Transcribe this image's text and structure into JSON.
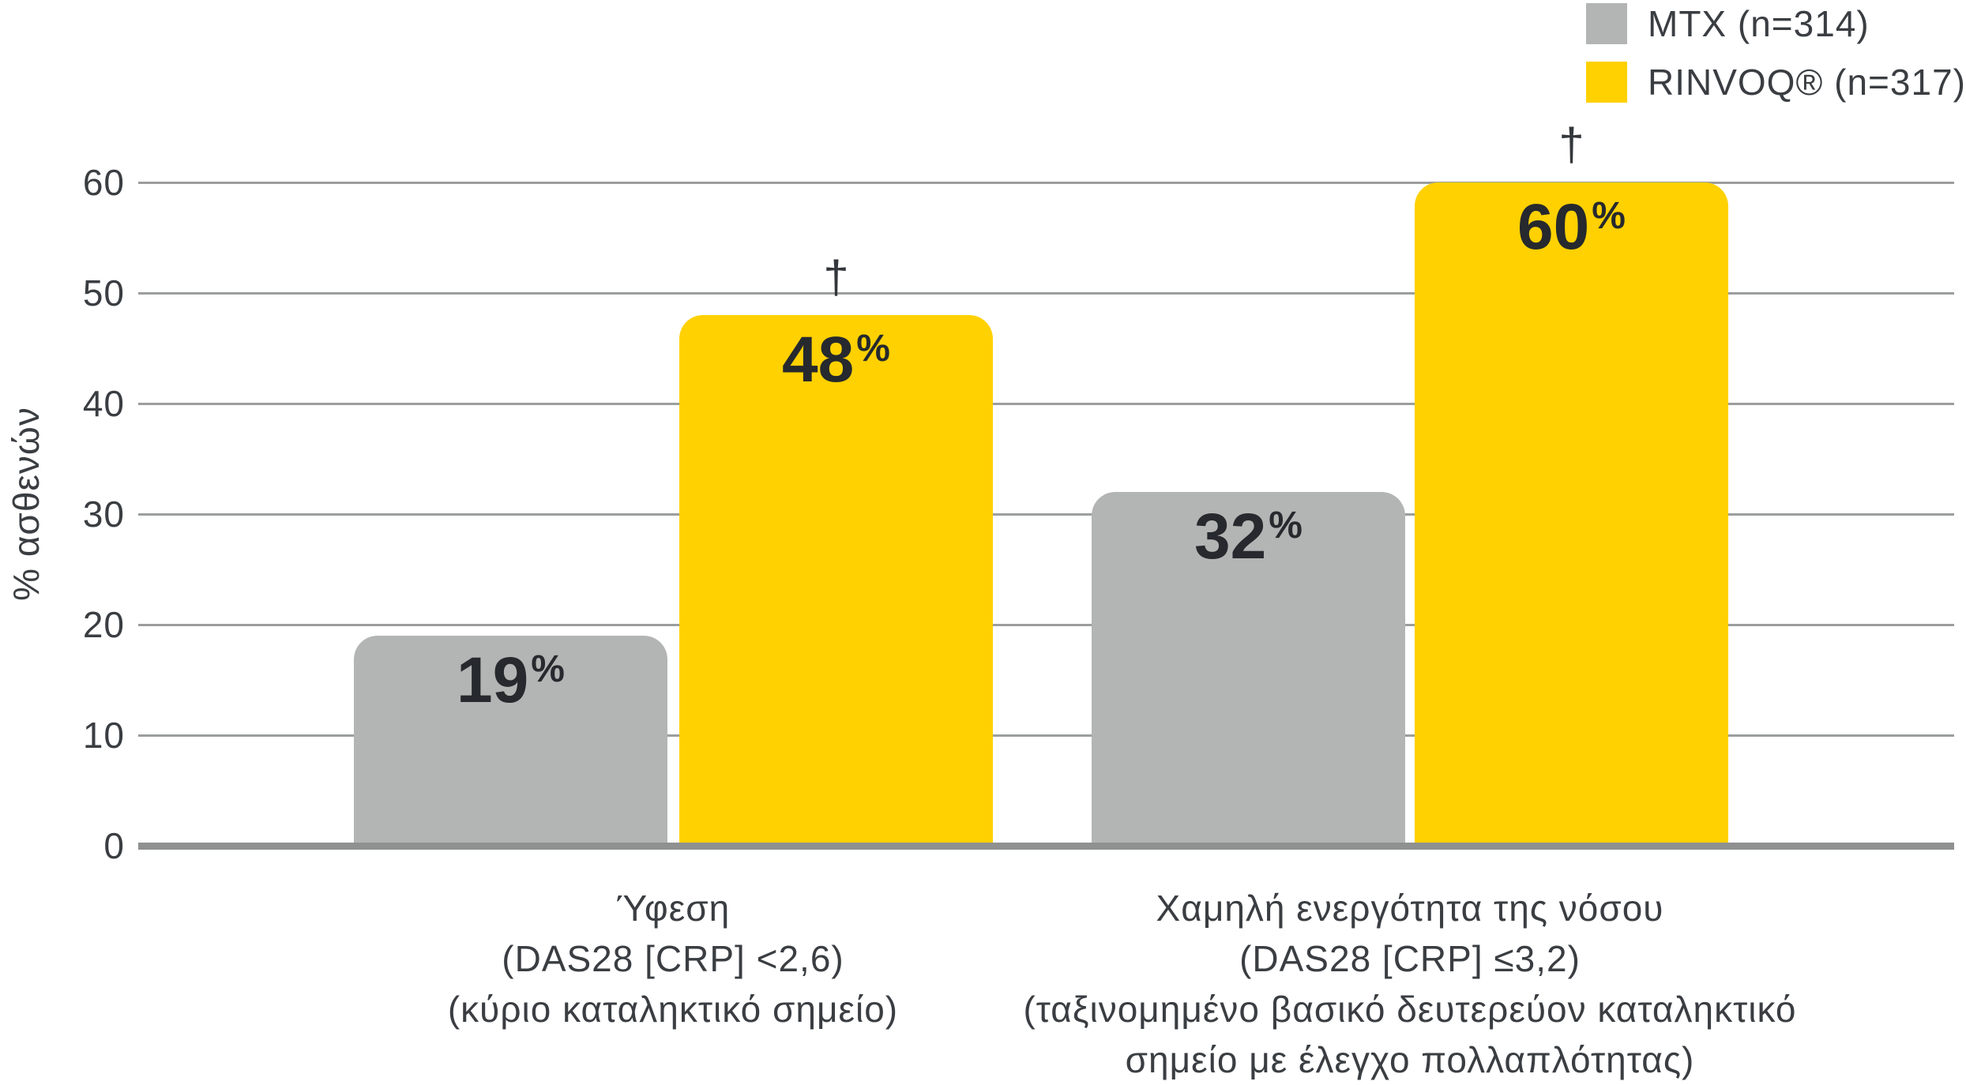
{
  "chart_data": {
    "type": "bar",
    "title": "",
    "xlabel": "",
    "ylabel": "% ασθενών",
    "ylim": [
      0,
      60
    ],
    "yticks": [
      0,
      10,
      20,
      30,
      40,
      50,
      60
    ],
    "grid": true,
    "legend_position": "top-right",
    "value_suffix": "%",
    "annotation_symbol": "†",
    "categories": [
      {
        "lines": [
          "Ύφεση",
          "(DAS28 [CRP] <2,6)",
          "(κύριο καταληκτικό σημείο)"
        ]
      },
      {
        "lines": [
          "Χαμηλή ενεργότητα της νόσου",
          "(DAS28 [CRP] ≤3,2)",
          "(ταξινομημένο βασικό δευτερεύον καταληκτικό",
          "σημείο με έλεγχο πολλαπλότητας)"
        ]
      }
    ],
    "series": [
      {
        "name": "MTX (n=314)",
        "color": "#B3B5B4",
        "values": [
          19,
          32
        ],
        "labels": [
          "19",
          "32"
        ],
        "annotations": [
          "",
          ""
        ]
      },
      {
        "name": "RINVOQ® (n=317)",
        "color": "#FFD100",
        "values": [
          48,
          60
        ],
        "labels": [
          "48",
          "60"
        ],
        "annotations": [
          "†",
          "†"
        ]
      }
    ]
  },
  "colors": {
    "gridline": "#9B9E9D",
    "baseline": "#8E9190",
    "axis_text": "#3A3E42",
    "value_text": "#26292D",
    "mtx_bar": "#B3B5B4",
    "rinvoq_bar": "#FFD100",
    "background": "#FFFFFF"
  }
}
